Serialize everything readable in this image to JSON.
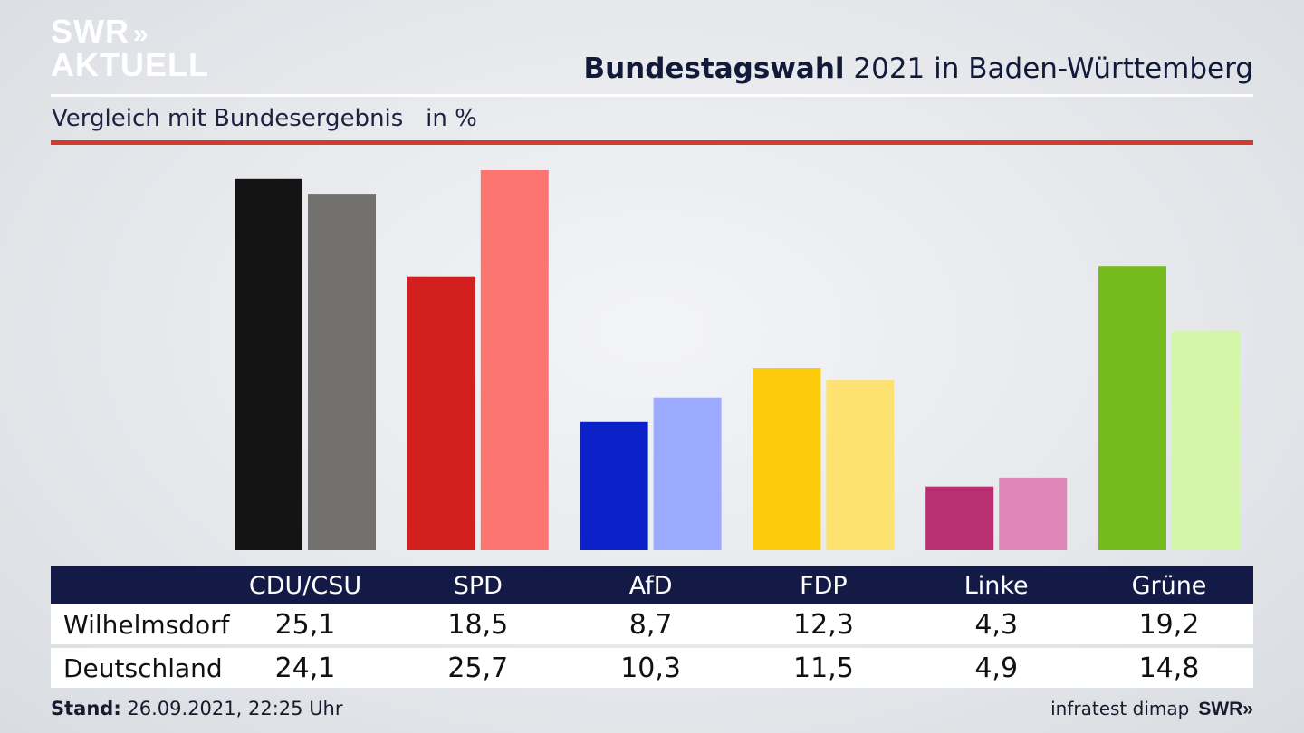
{
  "brand": {
    "logo_line1": "SWR",
    "logo_line2": "AKTUELL",
    "logo_chevrons": "»",
    "footer_logo": "SWR»"
  },
  "header": {
    "title_bold": "Bundestagswahl",
    "title_rest": "2021 in Baden-Württemberg",
    "subtitle": "Vergleich mit Bundesergebnis",
    "unit": "in %"
  },
  "footer": {
    "stand_label": "Stand:",
    "stand_value": "26.09.2021, 22:25 Uhr",
    "source": "infratest dimap"
  },
  "colors": {
    "accent_red": "#d23b2e",
    "header_navy": "#121a45"
  },
  "chart_data": {
    "type": "bar",
    "categories": [
      "CDU/CSU",
      "SPD",
      "AfD",
      "FDP",
      "Linke",
      "Grüne"
    ],
    "series": [
      {
        "name": "Wilhelmsdorf",
        "values": [
          25.1,
          18.5,
          8.7,
          12.3,
          4.3,
          19.2
        ],
        "colors": [
          "#141414",
          "#d41f1f",
          "#0a22c8",
          "#fccb0c",
          "#ba2f72",
          "#75bb1f"
        ]
      },
      {
        "name": "Deutschland",
        "values": [
          24.1,
          25.7,
          10.3,
          11.5,
          4.9,
          14.8
        ],
        "colors": [
          "#72716f",
          "#fd7570",
          "#9cabfd",
          "#fde272",
          "#df88b8",
          "#d4f6a8"
        ]
      }
    ],
    "ylim": [
      0,
      25.7
    ],
    "grid": false,
    "legend": "table below chart"
  }
}
